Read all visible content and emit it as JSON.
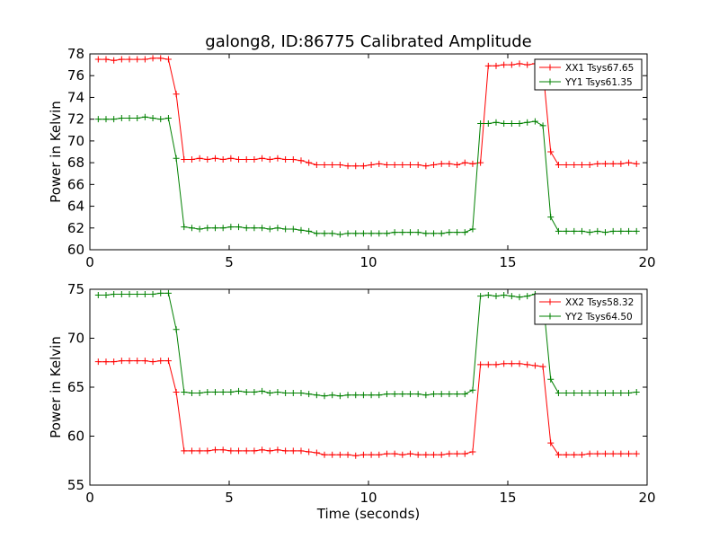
{
  "chart_data": [
    {
      "type": "line",
      "title": "galong8, ID:86775 Calibrated Amplitude",
      "xlabel": "",
      "ylabel": "Power in Kelvin",
      "xlim": [
        0,
        20
      ],
      "ylim": [
        60,
        78
      ],
      "xticks": [
        "0",
        "5",
        "10",
        "15",
        "20"
      ],
      "yticks": [
        "60",
        "62",
        "64",
        "66",
        "68",
        "70",
        "72",
        "74",
        "76",
        "78"
      ],
      "grid": false,
      "legend_position": "top-right",
      "x": [
        0.3,
        0.58,
        0.86,
        1.14,
        1.42,
        1.7,
        1.98,
        2.26,
        2.54,
        2.82,
        3.1,
        3.38,
        3.66,
        3.94,
        4.22,
        4.5,
        4.78,
        5.06,
        5.34,
        5.62,
        5.9,
        6.18,
        6.46,
        6.74,
        7.02,
        7.3,
        7.58,
        7.86,
        8.14,
        8.42,
        8.7,
        8.98,
        9.26,
        9.54,
        9.82,
        10.1,
        10.38,
        10.66,
        10.94,
        11.22,
        11.5,
        11.78,
        12.06,
        12.34,
        12.62,
        12.9,
        13.18,
        13.46,
        13.74,
        14.02,
        14.3,
        14.58,
        14.86,
        15.14,
        15.42,
        15.7,
        15.98,
        16.26,
        16.54,
        16.82,
        17.1,
        17.38,
        17.66,
        17.94,
        18.22,
        18.5,
        18.78,
        19.06,
        19.34,
        19.62
      ],
      "series": [
        {
          "name": "XX1 Tsys67.65",
          "color": "#ff0000",
          "values": [
            77.5,
            77.5,
            77.4,
            77.5,
            77.5,
            77.5,
            77.5,
            77.6,
            77.6,
            77.5,
            74.3,
            68.3,
            68.3,
            68.4,
            68.3,
            68.4,
            68.3,
            68.4,
            68.3,
            68.3,
            68.3,
            68.4,
            68.3,
            68.4,
            68.3,
            68.3,
            68.2,
            68.0,
            67.8,
            67.8,
            67.8,
            67.8,
            67.7,
            67.7,
            67.7,
            67.8,
            67.9,
            67.8,
            67.8,
            67.8,
            67.8,
            67.8,
            67.7,
            67.8,
            67.9,
            67.9,
            67.8,
            68.0,
            67.9,
            68.0,
            76.9,
            76.9,
            77.0,
            77.0,
            77.1,
            77.0,
            77.1,
            76.6,
            69.0,
            67.8,
            67.8,
            67.8,
            67.8,
            67.8,
            67.9,
            67.9,
            67.9,
            67.9,
            68.0,
            67.9
          ]
        },
        {
          "name": "YY1 Tsys61.35",
          "color": "#008000",
          "values": [
            72.0,
            72.0,
            72.0,
            72.1,
            72.1,
            72.1,
            72.2,
            72.1,
            72.0,
            72.1,
            68.4,
            62.1,
            62.0,
            61.9,
            62.0,
            62.0,
            62.0,
            62.1,
            62.1,
            62.0,
            62.0,
            62.0,
            61.9,
            62.0,
            61.9,
            61.9,
            61.8,
            61.7,
            61.5,
            61.5,
            61.5,
            61.4,
            61.5,
            61.5,
            61.5,
            61.5,
            61.5,
            61.5,
            61.6,
            61.6,
            61.6,
            61.6,
            61.5,
            61.5,
            61.5,
            61.6,
            61.6,
            61.6,
            61.9,
            71.6,
            71.6,
            71.7,
            71.6,
            71.6,
            71.6,
            71.7,
            71.8,
            71.4,
            63.0,
            61.7,
            61.7,
            61.7,
            61.7,
            61.6,
            61.7,
            61.6,
            61.7,
            61.7,
            61.7,
            61.7
          ]
        }
      ]
    },
    {
      "type": "line",
      "title": "",
      "xlabel": "Time (seconds)",
      "ylabel": "Power in Kelvin",
      "xlim": [
        0,
        20
      ],
      "ylim": [
        55,
        75
      ],
      "xticks": [
        "0",
        "5",
        "10",
        "15",
        "20"
      ],
      "yticks": [
        "55",
        "60",
        "65",
        "70",
        "75"
      ],
      "grid": false,
      "legend_position": "top-right",
      "x": [
        0.3,
        0.58,
        0.86,
        1.14,
        1.42,
        1.7,
        1.98,
        2.26,
        2.54,
        2.82,
        3.1,
        3.38,
        3.66,
        3.94,
        4.22,
        4.5,
        4.78,
        5.06,
        5.34,
        5.62,
        5.9,
        6.18,
        6.46,
        6.74,
        7.02,
        7.3,
        7.58,
        7.86,
        8.14,
        8.42,
        8.7,
        8.98,
        9.26,
        9.54,
        9.82,
        10.1,
        10.38,
        10.66,
        10.94,
        11.22,
        11.5,
        11.78,
        12.06,
        12.34,
        12.62,
        12.9,
        13.18,
        13.46,
        13.74,
        14.02,
        14.3,
        14.58,
        14.86,
        15.14,
        15.42,
        15.7,
        15.98,
        16.26,
        16.54,
        16.82,
        17.1,
        17.38,
        17.66,
        17.94,
        18.22,
        18.5,
        18.78,
        19.06,
        19.34,
        19.62
      ],
      "series": [
        {
          "name": "XX2 Tsys58.32",
          "color": "#ff0000",
          "values": [
            67.6,
            67.6,
            67.6,
            67.7,
            67.7,
            67.7,
            67.7,
            67.6,
            67.7,
            67.7,
            64.5,
            58.5,
            58.5,
            58.5,
            58.5,
            58.6,
            58.6,
            58.5,
            58.5,
            58.5,
            58.5,
            58.6,
            58.5,
            58.6,
            58.5,
            58.5,
            58.5,
            58.4,
            58.3,
            58.1,
            58.1,
            58.1,
            58.1,
            58.0,
            58.1,
            58.1,
            58.1,
            58.2,
            58.2,
            58.1,
            58.2,
            58.1,
            58.1,
            58.1,
            58.1,
            58.2,
            58.2,
            58.2,
            58.4,
            67.3,
            67.3,
            67.3,
            67.4,
            67.4,
            67.4,
            67.3,
            67.2,
            67.1,
            59.3,
            58.1,
            58.1,
            58.1,
            58.1,
            58.2,
            58.2,
            58.2,
            58.2,
            58.2,
            58.2,
            58.2
          ]
        },
        {
          "name": "YY2 Tsys64.50",
          "color": "#008000",
          "values": [
            74.4,
            74.4,
            74.5,
            74.5,
            74.5,
            74.5,
            74.5,
            74.5,
            74.6,
            74.6,
            70.9,
            64.5,
            64.4,
            64.4,
            64.5,
            64.5,
            64.5,
            64.5,
            64.6,
            64.5,
            64.5,
            64.6,
            64.4,
            64.5,
            64.4,
            64.4,
            64.4,
            64.3,
            64.2,
            64.1,
            64.2,
            64.1,
            64.2,
            64.2,
            64.2,
            64.2,
            64.2,
            64.3,
            64.3,
            64.3,
            64.3,
            64.3,
            64.2,
            64.3,
            64.3,
            64.3,
            64.3,
            64.3,
            64.7,
            74.3,
            74.4,
            74.3,
            74.4,
            74.3,
            74.2,
            74.3,
            74.5,
            74.1,
            65.8,
            64.4,
            64.4,
            64.4,
            64.4,
            64.4,
            64.4,
            64.4,
            64.4,
            64.4,
            64.4,
            64.5
          ]
        }
      ]
    }
  ]
}
